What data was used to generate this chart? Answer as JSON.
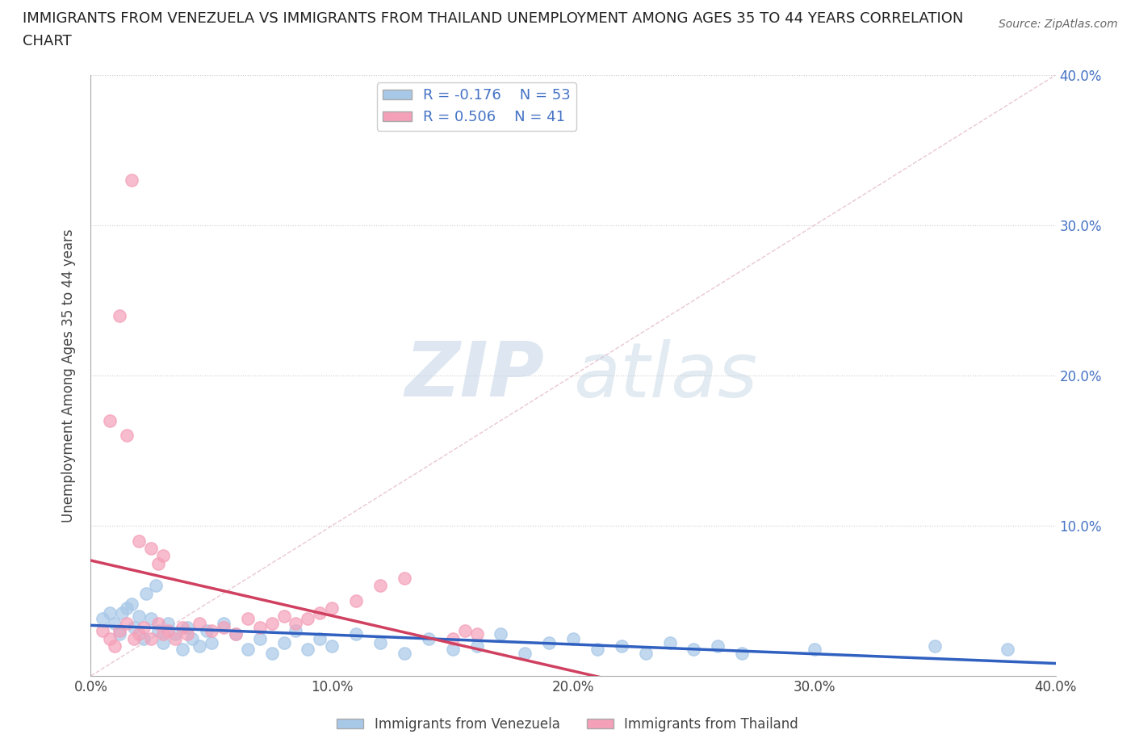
{
  "title": "IMMIGRANTS FROM VENEZUELA VS IMMIGRANTS FROM THAILAND UNEMPLOYMENT AMONG AGES 35 TO 44 YEARS CORRELATION\nCHART",
  "source": "Source: ZipAtlas.com",
  "ylabel": "Unemployment Among Ages 35 to 44 years",
  "xlim": [
    0.0,
    0.4
  ],
  "ylim": [
    0.0,
    0.4
  ],
  "xticks": [
    0.0,
    0.1,
    0.2,
    0.3,
    0.4
  ],
  "yticks": [
    0.0,
    0.1,
    0.2,
    0.3,
    0.4
  ],
  "xticklabels": [
    "0.0%",
    "10.0%",
    "20.0%",
    "30.0%",
    "40.0%"
  ],
  "right_yticklabels": [
    "",
    "10.0%",
    "20.0%",
    "30.0%",
    "40.0%"
  ],
  "color_venezuela": "#a8c8e8",
  "color_thailand": "#f4a0b8",
  "trendline_venezuela": "#3060c0",
  "trendline_thailand": "#d04060",
  "R_venezuela": -0.176,
  "N_venezuela": 53,
  "R_thailand": 0.506,
  "N_thailand": 41,
  "legend_label_venezuela": "Immigrants from Venezuela",
  "legend_label_thailand": "Immigrants from Thailand",
  "watermark_zip": "ZIP",
  "watermark_atlas": "atlas",
  "background_color": "#ffffff",
  "venezuela_x": [
    0.005,
    0.008,
    0.01,
    0.012,
    0.015,
    0.018,
    0.02,
    0.022,
    0.025,
    0.028,
    0.03,
    0.032,
    0.035,
    0.038,
    0.04,
    0.042,
    0.045,
    0.048,
    0.05,
    0.055,
    0.06,
    0.065,
    0.07,
    0.075,
    0.08,
    0.085,
    0.09,
    0.095,
    0.1,
    0.11,
    0.12,
    0.13,
    0.14,
    0.15,
    0.16,
    0.17,
    0.18,
    0.19,
    0.2,
    0.21,
    0.22,
    0.23,
    0.24,
    0.25,
    0.26,
    0.27,
    0.013,
    0.017,
    0.023,
    0.027,
    0.3,
    0.35,
    0.38
  ],
  "venezuela_y": [
    0.038,
    0.042,
    0.035,
    0.028,
    0.045,
    0.032,
    0.04,
    0.025,
    0.038,
    0.03,
    0.022,
    0.035,
    0.028,
    0.018,
    0.032,
    0.025,
    0.02,
    0.03,
    0.022,
    0.035,
    0.028,
    0.018,
    0.025,
    0.015,
    0.022,
    0.03,
    0.018,
    0.025,
    0.02,
    0.028,
    0.022,
    0.015,
    0.025,
    0.018,
    0.02,
    0.028,
    0.015,
    0.022,
    0.025,
    0.018,
    0.02,
    0.015,
    0.022,
    0.018,
    0.02,
    0.015,
    0.042,
    0.048,
    0.055,
    0.06,
    0.018,
    0.02,
    0.018
  ],
  "thailand_x": [
    0.005,
    0.008,
    0.01,
    0.012,
    0.015,
    0.018,
    0.02,
    0.022,
    0.025,
    0.028,
    0.03,
    0.032,
    0.035,
    0.038,
    0.04,
    0.045,
    0.05,
    0.055,
    0.06,
    0.065,
    0.07,
    0.075,
    0.08,
    0.085,
    0.09,
    0.095,
    0.1,
    0.11,
    0.12,
    0.13,
    0.008,
    0.012,
    0.015,
    0.02,
    0.025,
    0.028,
    0.03,
    0.017,
    0.15,
    0.155,
    0.16
  ],
  "thailand_y": [
    0.03,
    0.025,
    0.02,
    0.03,
    0.035,
    0.025,
    0.028,
    0.032,
    0.025,
    0.035,
    0.028,
    0.03,
    0.025,
    0.032,
    0.028,
    0.035,
    0.03,
    0.032,
    0.028,
    0.038,
    0.032,
    0.035,
    0.04,
    0.035,
    0.038,
    0.042,
    0.045,
    0.05,
    0.06,
    0.065,
    0.17,
    0.24,
    0.16,
    0.09,
    0.085,
    0.075,
    0.08,
    0.33,
    0.025,
    0.03,
    0.028
  ]
}
